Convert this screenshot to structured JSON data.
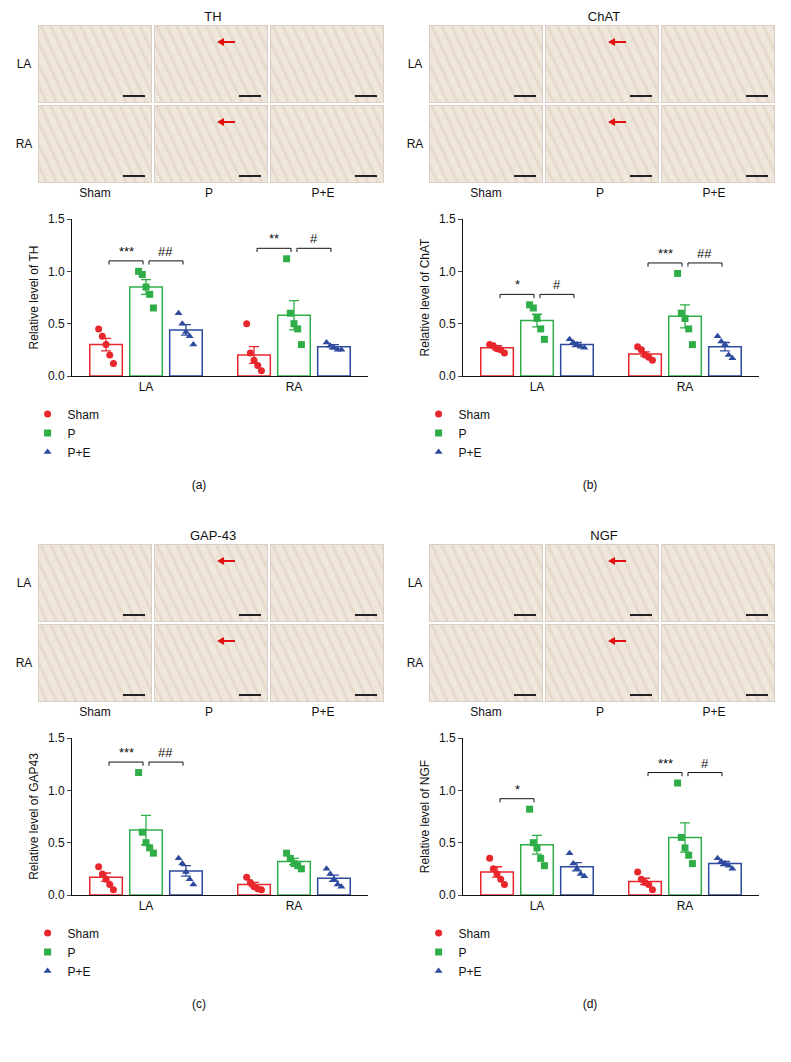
{
  "chart_data": [
    {
      "type": "bar",
      "panel": "(a)",
      "title": "TH",
      "image_rows": [
        "LA",
        "RA"
      ],
      "image_columns": [
        "Sham",
        "P",
        "P+E"
      ],
      "categories": [
        "LA",
        "RA"
      ],
      "ylabel": "Relative level of TH",
      "ylim": [
        0,
        1.5
      ],
      "yticks": [
        {
          "value": 0,
          "label": "0.0"
        },
        {
          "value": 0.5,
          "label": "0.5"
        },
        {
          "value": 1.0,
          "label": "1.0"
        },
        {
          "value": 1.5,
          "label": "1.5"
        }
      ],
      "grid": false,
      "legend": "bottom left",
      "series": [
        {
          "name": "Sham",
          "color": "#e8272d",
          "marker": "circle",
          "values": [
            0.3,
            0.2
          ],
          "error": [
            0.06,
            0.08
          ],
          "points": [
            [
              0.45,
              0.38,
              0.3,
              0.2,
              0.12
            ],
            [
              0.5,
              0.22,
              0.15,
              0.1,
              0.05
            ]
          ]
        },
        {
          "name": "P",
          "color": "#2fae48",
          "marker": "square",
          "values": [
            0.85,
            0.58
          ],
          "error": [
            0.07,
            0.14
          ],
          "points": [
            [
              1.0,
              0.97,
              0.85,
              0.78,
              0.65
            ],
            [
              1.12,
              0.6,
              0.5,
              0.45,
              0.3
            ]
          ]
        },
        {
          "name": "P+E",
          "color": "#2e4a9e",
          "marker": "triangle",
          "values": [
            0.44,
            0.28
          ],
          "error": [
            0.05,
            0.02
          ],
          "points": [
            [
              0.6,
              0.5,
              0.42,
              0.38,
              0.3
            ],
            [
              0.32,
              0.29,
              0.27,
              0.25,
              0.25
            ]
          ]
        }
      ],
      "annotations": [
        {
          "category": "LA",
          "from": "Sham",
          "to": "P",
          "label": "***"
        },
        {
          "category": "LA",
          "from": "P",
          "to": "P+E",
          "label": "##"
        },
        {
          "category": "RA",
          "from": "Sham",
          "to": "P",
          "label": "**"
        },
        {
          "category": "RA",
          "from": "P",
          "to": "P+E",
          "label": "#"
        }
      ]
    },
    {
      "type": "bar",
      "panel": "(b)",
      "title": "ChAT",
      "image_rows": [
        "LA",
        "RA"
      ],
      "image_columns": [
        "Sham",
        "P",
        "P+E"
      ],
      "categories": [
        "LA",
        "RA"
      ],
      "ylabel": "Relative level of ChAT",
      "ylim": [
        0,
        1.5
      ],
      "yticks": [
        {
          "value": 0,
          "label": "0.0"
        },
        {
          "value": 0.5,
          "label": "0.5"
        },
        {
          "value": 1.0,
          "label": "1.0"
        },
        {
          "value": 1.5,
          "label": "1.5"
        }
      ],
      "grid": false,
      "legend": "bottom left",
      "series": [
        {
          "name": "Sham",
          "color": "#e8272d",
          "marker": "circle",
          "values": [
            0.27,
            0.21
          ],
          "error": [
            0.02,
            0.02
          ],
          "points": [
            [
              0.3,
              0.29,
              0.26,
              0.25,
              0.22
            ],
            [
              0.28,
              0.25,
              0.2,
              0.18,
              0.15
            ]
          ]
        },
        {
          "name": "P",
          "color": "#2fae48",
          "marker": "square",
          "values": [
            0.53,
            0.57
          ],
          "error": [
            0.06,
            0.11
          ],
          "points": [
            [
              0.68,
              0.65,
              0.55,
              0.45,
              0.35
            ],
            [
              0.98,
              0.6,
              0.55,
              0.45,
              0.3
            ]
          ]
        },
        {
          "name": "P+E",
          "color": "#2e4a9e",
          "marker": "triangle",
          "values": [
            0.3,
            0.28
          ],
          "error": [
            0.02,
            0.04
          ],
          "points": [
            [
              0.35,
              0.32,
              0.3,
              0.28,
              0.27
            ],
            [
              0.38,
              0.33,
              0.3,
              0.2,
              0.17
            ]
          ]
        }
      ],
      "annotations": [
        {
          "category": "LA",
          "from": "Sham",
          "to": "P",
          "label": "*"
        },
        {
          "category": "LA",
          "from": "P",
          "to": "P+E",
          "label": "#"
        },
        {
          "category": "RA",
          "from": "Sham",
          "to": "P",
          "label": "***"
        },
        {
          "category": "RA",
          "from": "P",
          "to": "P+E",
          "label": "##"
        }
      ]
    },
    {
      "type": "bar",
      "panel": "(c)",
      "title": "GAP-43",
      "image_rows": [
        "LA",
        "RA"
      ],
      "image_columns": [
        "Sham",
        "P",
        "P+E"
      ],
      "categories": [
        "LA",
        "RA"
      ],
      "ylabel": "Relative level of GAP43",
      "ylim": [
        0,
        1.5
      ],
      "yticks": [
        {
          "value": 0,
          "label": "0.0"
        },
        {
          "value": 0.5,
          "label": "0.5"
        },
        {
          "value": 1.0,
          "label": "1.0"
        },
        {
          "value": 1.5,
          "label": "1.5"
        }
      ],
      "grid": false,
      "legend": "bottom left",
      "series": [
        {
          "name": "Sham",
          "color": "#e8272d",
          "marker": "circle",
          "values": [
            0.17,
            0.1
          ],
          "error": [
            0.04,
            0.02
          ],
          "points": [
            [
              0.27,
              0.2,
              0.15,
              0.1,
              0.05
            ],
            [
              0.17,
              0.12,
              0.08,
              0.06,
              0.05
            ]
          ]
        },
        {
          "name": "P",
          "color": "#2fae48",
          "marker": "square",
          "values": [
            0.62,
            0.32
          ],
          "error": [
            0.14,
            0.03
          ],
          "points": [
            [
              1.17,
              0.6,
              0.5,
              0.45,
              0.4
            ],
            [
              0.4,
              0.35,
              0.3,
              0.28,
              0.25
            ]
          ]
        },
        {
          "name": "P+E",
          "color": "#2e4a9e",
          "marker": "triangle",
          "values": [
            0.23,
            0.16
          ],
          "error": [
            0.05,
            0.03
          ],
          "points": [
            [
              0.35,
              0.3,
              0.22,
              0.15,
              0.1
            ],
            [
              0.25,
              0.2,
              0.15,
              0.1,
              0.08
            ]
          ]
        }
      ],
      "annotations": [
        {
          "category": "LA",
          "from": "Sham",
          "to": "P",
          "label": "***"
        },
        {
          "category": "LA",
          "from": "P",
          "to": "P+E",
          "label": "##"
        }
      ]
    },
    {
      "type": "bar",
      "panel": "(d)",
      "title": "NGF",
      "image_rows": [
        "LA",
        "RA"
      ],
      "image_columns": [
        "Sham",
        "P",
        "P+E"
      ],
      "categories": [
        "LA",
        "RA"
      ],
      "ylabel": "Relative level of NGF",
      "ylim": [
        0,
        1.5
      ],
      "yticks": [
        {
          "value": 0,
          "label": "0.0"
        },
        {
          "value": 0.5,
          "label": "0.5"
        },
        {
          "value": 1.0,
          "label": "1.0"
        },
        {
          "value": 1.5,
          "label": "1.5"
        }
      ],
      "grid": false,
      "legend": "bottom left",
      "series": [
        {
          "name": "Sham",
          "color": "#e8272d",
          "marker": "circle",
          "values": [
            0.22,
            0.13
          ],
          "error": [
            0.05,
            0.03
          ],
          "points": [
            [
              0.35,
              0.25,
              0.2,
              0.15,
              0.1
            ],
            [
              0.22,
              0.15,
              0.12,
              0.1,
              0.05
            ]
          ]
        },
        {
          "name": "P",
          "color": "#2fae48",
          "marker": "square",
          "values": [
            0.48,
            0.55
          ],
          "error": [
            0.09,
            0.14
          ],
          "points": [
            [
              0.82,
              0.5,
              0.45,
              0.35,
              0.28
            ],
            [
              1.07,
              0.55,
              0.45,
              0.38,
              0.3
            ]
          ]
        },
        {
          "name": "P+E",
          "color": "#2e4a9e",
          "marker": "triangle",
          "values": [
            0.27,
            0.3
          ],
          "error": [
            0.04,
            0.02
          ],
          "points": [
            [
              0.4,
              0.3,
              0.25,
              0.2,
              0.18
            ],
            [
              0.35,
              0.32,
              0.3,
              0.28,
              0.25
            ]
          ]
        }
      ],
      "annotations": [
        {
          "category": "LA",
          "from": "Sham",
          "to": "P",
          "label": "*"
        },
        {
          "category": "RA",
          "from": "Sham",
          "to": "P",
          "label": "***"
        },
        {
          "category": "RA",
          "from": "P",
          "to": "P+E",
          "label": "#"
        }
      ]
    }
  ]
}
